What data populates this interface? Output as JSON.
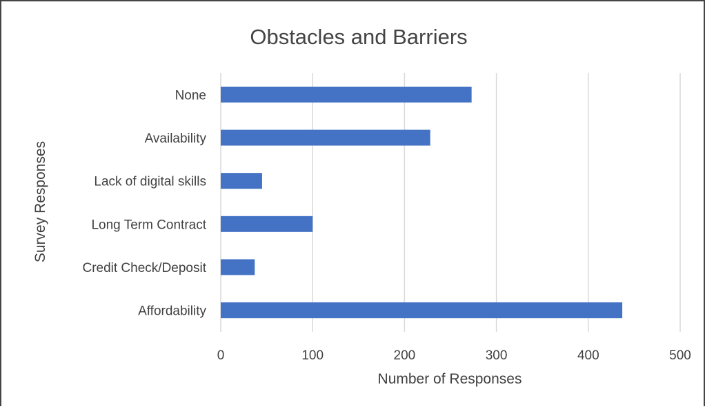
{
  "chart_data": {
    "type": "bar",
    "orientation": "horizontal",
    "title": "Obstacles and Barriers",
    "xlabel": "Number of Responses",
    "ylabel": "Survey Responses",
    "categories": [
      "None",
      "Availability",
      "Lack of digital skills",
      "Long Term Contract",
      "Credit Check/Deposit",
      "Affordability"
    ],
    "values": [
      273,
      228,
      45,
      100,
      37,
      437
    ],
    "xlim": [
      0,
      500
    ],
    "xticks": [
      0,
      100,
      200,
      300,
      400,
      500
    ],
    "grid": "vertical",
    "bar_color": "#4472C4",
    "grid_color": "#D9D9D9"
  }
}
